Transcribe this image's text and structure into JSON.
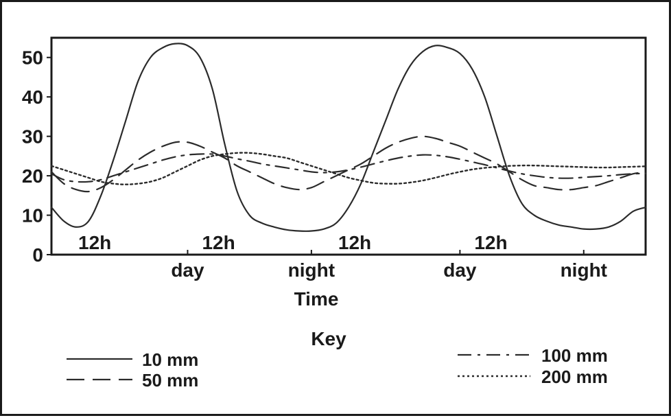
{
  "chart_data": {
    "type": "line",
    "title": "",
    "xlabel": "Time",
    "ylabel": "",
    "ylim": [
      0,
      55
    ],
    "yticks": [
      0,
      10,
      20,
      30,
      40,
      50
    ],
    "grid": false,
    "xlim": [
      0,
      48
    ],
    "x_marks": [
      {
        "label": "12h",
        "x": 3.5
      },
      {
        "label": "12h",
        "x": 13.5
      },
      {
        "label": "12h",
        "x": 24.5
      },
      {
        "label": "12h",
        "x": 35.5
      }
    ],
    "x_periods": [
      {
        "label": "day",
        "x": 11
      },
      {
        "label": "night",
        "x": 21
      },
      {
        "label": "day",
        "x": 33
      },
      {
        "label": "night",
        "x": 43
      }
    ],
    "x_ticks": [
      11,
      21,
      33,
      43
    ],
    "series": [
      {
        "name": "10 mm",
        "style": "solid",
        "points": [
          [
            0,
            12
          ],
          [
            1,
            8.5
          ],
          [
            2,
            7
          ],
          [
            3,
            8.5
          ],
          [
            4,
            15
          ],
          [
            5,
            24
          ],
          [
            6,
            34
          ],
          [
            7,
            44
          ],
          [
            8,
            50
          ],
          [
            9,
            52.5
          ],
          [
            10,
            53.5
          ],
          [
            11,
            53
          ],
          [
            12,
            50
          ],
          [
            13,
            42
          ],
          [
            14,
            28
          ],
          [
            15,
            16
          ],
          [
            16,
            10
          ],
          [
            17,
            8
          ],
          [
            18,
            7
          ],
          [
            19,
            6.3
          ],
          [
            20,
            6
          ],
          [
            21,
            6
          ],
          [
            22,
            6.5
          ],
          [
            23,
            8
          ],
          [
            24,
            12
          ],
          [
            25,
            18
          ],
          [
            26,
            26
          ],
          [
            27,
            34
          ],
          [
            28,
            42
          ],
          [
            29,
            48
          ],
          [
            30,
            51.5
          ],
          [
            31,
            53
          ],
          [
            32,
            52.5
          ],
          [
            33,
            51
          ],
          [
            34,
            47
          ],
          [
            35,
            40
          ],
          [
            36,
            30
          ],
          [
            37,
            20
          ],
          [
            38,
            13
          ],
          [
            39,
            10
          ],
          [
            40,
            8.5
          ],
          [
            41,
            7.5
          ],
          [
            42,
            7
          ],
          [
            43,
            6.5
          ],
          [
            44,
            6.5
          ],
          [
            45,
            7
          ],
          [
            46,
            8.5
          ],
          [
            47,
            11
          ],
          [
            48,
            12
          ]
        ]
      },
      {
        "name": "50 mm",
        "style": "dash",
        "points": [
          [
            0,
            21
          ],
          [
            1,
            18
          ],
          [
            2,
            16.5
          ],
          [
            3,
            16
          ],
          [
            4,
            17
          ],
          [
            5,
            19
          ],
          [
            6,
            21.5
          ],
          [
            7,
            24
          ],
          [
            8,
            26
          ],
          [
            9,
            27.5
          ],
          [
            10,
            28.5
          ],
          [
            11,
            28.5
          ],
          [
            12,
            27.5
          ],
          [
            13,
            26
          ],
          [
            14,
            24.5
          ],
          [
            15,
            22.5
          ],
          [
            16,
            21
          ],
          [
            17,
            19.5
          ],
          [
            18,
            18
          ],
          [
            19,
            17
          ],
          [
            20,
            16.5
          ],
          [
            21,
            17
          ],
          [
            22,
            18.5
          ],
          [
            23,
            20
          ],
          [
            24,
            21.5
          ],
          [
            25,
            23
          ],
          [
            26,
            25
          ],
          [
            27,
            27
          ],
          [
            28,
            28.5
          ],
          [
            29,
            29.5
          ],
          [
            30,
            30
          ],
          [
            31,
            29.5
          ],
          [
            32,
            28.5
          ],
          [
            33,
            27.5
          ],
          [
            34,
            26
          ],
          [
            35,
            24.5
          ],
          [
            36,
            23
          ],
          [
            37,
            21
          ],
          [
            38,
            19
          ],
          [
            39,
            17.5
          ],
          [
            40,
            17
          ],
          [
            41,
            16.5
          ],
          [
            42,
            16.5
          ],
          [
            43,
            17
          ],
          [
            44,
            17.5
          ],
          [
            45,
            18.5
          ],
          [
            46,
            19.5
          ],
          [
            47,
            20.5
          ],
          [
            48,
            21
          ]
        ]
      },
      {
        "name": "100 mm",
        "style": "dash-dot",
        "points": [
          [
            0,
            20.5
          ],
          [
            1,
            19
          ],
          [
            2,
            18.5
          ],
          [
            3,
            18.5
          ],
          [
            4,
            19
          ],
          [
            5,
            20
          ],
          [
            6,
            21
          ],
          [
            7,
            22
          ],
          [
            8,
            23
          ],
          [
            9,
            24
          ],
          [
            10,
            24.8
          ],
          [
            11,
            25.3
          ],
          [
            12,
            25.5
          ],
          [
            13,
            25.5
          ],
          [
            14,
            25
          ],
          [
            15,
            24.3
          ],
          [
            16,
            23.7
          ],
          [
            17,
            23
          ],
          [
            18,
            22.5
          ],
          [
            19,
            22
          ],
          [
            20,
            21.5
          ],
          [
            21,
            21
          ],
          [
            22,
            20.8
          ],
          [
            23,
            21
          ],
          [
            24,
            21.5
          ],
          [
            25,
            22.2
          ],
          [
            26,
            23
          ],
          [
            27,
            23.8
          ],
          [
            28,
            24.5
          ],
          [
            29,
            25
          ],
          [
            30,
            25.3
          ],
          [
            31,
            25.2
          ],
          [
            32,
            24.8
          ],
          [
            33,
            24.2
          ],
          [
            34,
            23.5
          ],
          [
            35,
            22.8
          ],
          [
            36,
            22
          ],
          [
            37,
            21.2
          ],
          [
            38,
            20.5
          ],
          [
            39,
            20
          ],
          [
            40,
            19.6
          ],
          [
            41,
            19.4
          ],
          [
            42,
            19.4
          ],
          [
            43,
            19.6
          ],
          [
            44,
            19.8
          ],
          [
            45,
            20
          ],
          [
            46,
            20.3
          ],
          [
            47,
            20.5
          ],
          [
            48,
            20.6
          ]
        ]
      },
      {
        "name": "200 mm",
        "style": "dot",
        "points": [
          [
            0,
            22.5
          ],
          [
            1,
            21.5
          ],
          [
            2,
            20.5
          ],
          [
            3,
            19.5
          ],
          [
            4,
            18.5
          ],
          [
            5,
            18
          ],
          [
            6,
            17.8
          ],
          [
            7,
            18
          ],
          [
            8,
            18.5
          ],
          [
            9,
            19.5
          ],
          [
            10,
            21
          ],
          [
            11,
            22.5
          ],
          [
            12,
            24
          ],
          [
            13,
            25
          ],
          [
            14,
            25.5
          ],
          [
            15,
            25.8
          ],
          [
            16,
            25.8
          ],
          [
            17,
            25.5
          ],
          [
            18,
            25
          ],
          [
            19,
            24.5
          ],
          [
            20,
            23.5
          ],
          [
            21,
            22.5
          ],
          [
            22,
            21.5
          ],
          [
            23,
            20.5
          ],
          [
            24,
            19.5
          ],
          [
            25,
            18.8
          ],
          [
            26,
            18.2
          ],
          [
            27,
            18
          ],
          [
            28,
            18
          ],
          [
            29,
            18.3
          ],
          [
            30,
            18.8
          ],
          [
            31,
            19.5
          ],
          [
            32,
            20.3
          ],
          [
            33,
            21
          ],
          [
            34,
            21.6
          ],
          [
            35,
            22
          ],
          [
            36,
            22.3
          ],
          [
            37,
            22.5
          ],
          [
            38,
            22.6
          ],
          [
            39,
            22.6
          ],
          [
            40,
            22.5
          ],
          [
            41,
            22.4
          ],
          [
            42,
            22.3
          ],
          [
            43,
            22.2
          ],
          [
            44,
            22.1
          ],
          [
            45,
            22.1
          ],
          [
            46,
            22.2
          ],
          [
            47,
            22.3
          ],
          [
            48,
            22.4
          ]
        ]
      }
    ]
  },
  "key": {
    "title": "Key",
    "items": [
      {
        "label": "10 mm",
        "style": "solid"
      },
      {
        "label": "50 mm",
        "style": "dash"
      },
      {
        "label": "100 mm",
        "style": "dash-dot"
      },
      {
        "label": "200 mm",
        "style": "dot"
      }
    ]
  },
  "colors": {
    "ink": "#1a1a1a",
    "line": "#2b2b2b",
    "background": "#ffffff"
  }
}
